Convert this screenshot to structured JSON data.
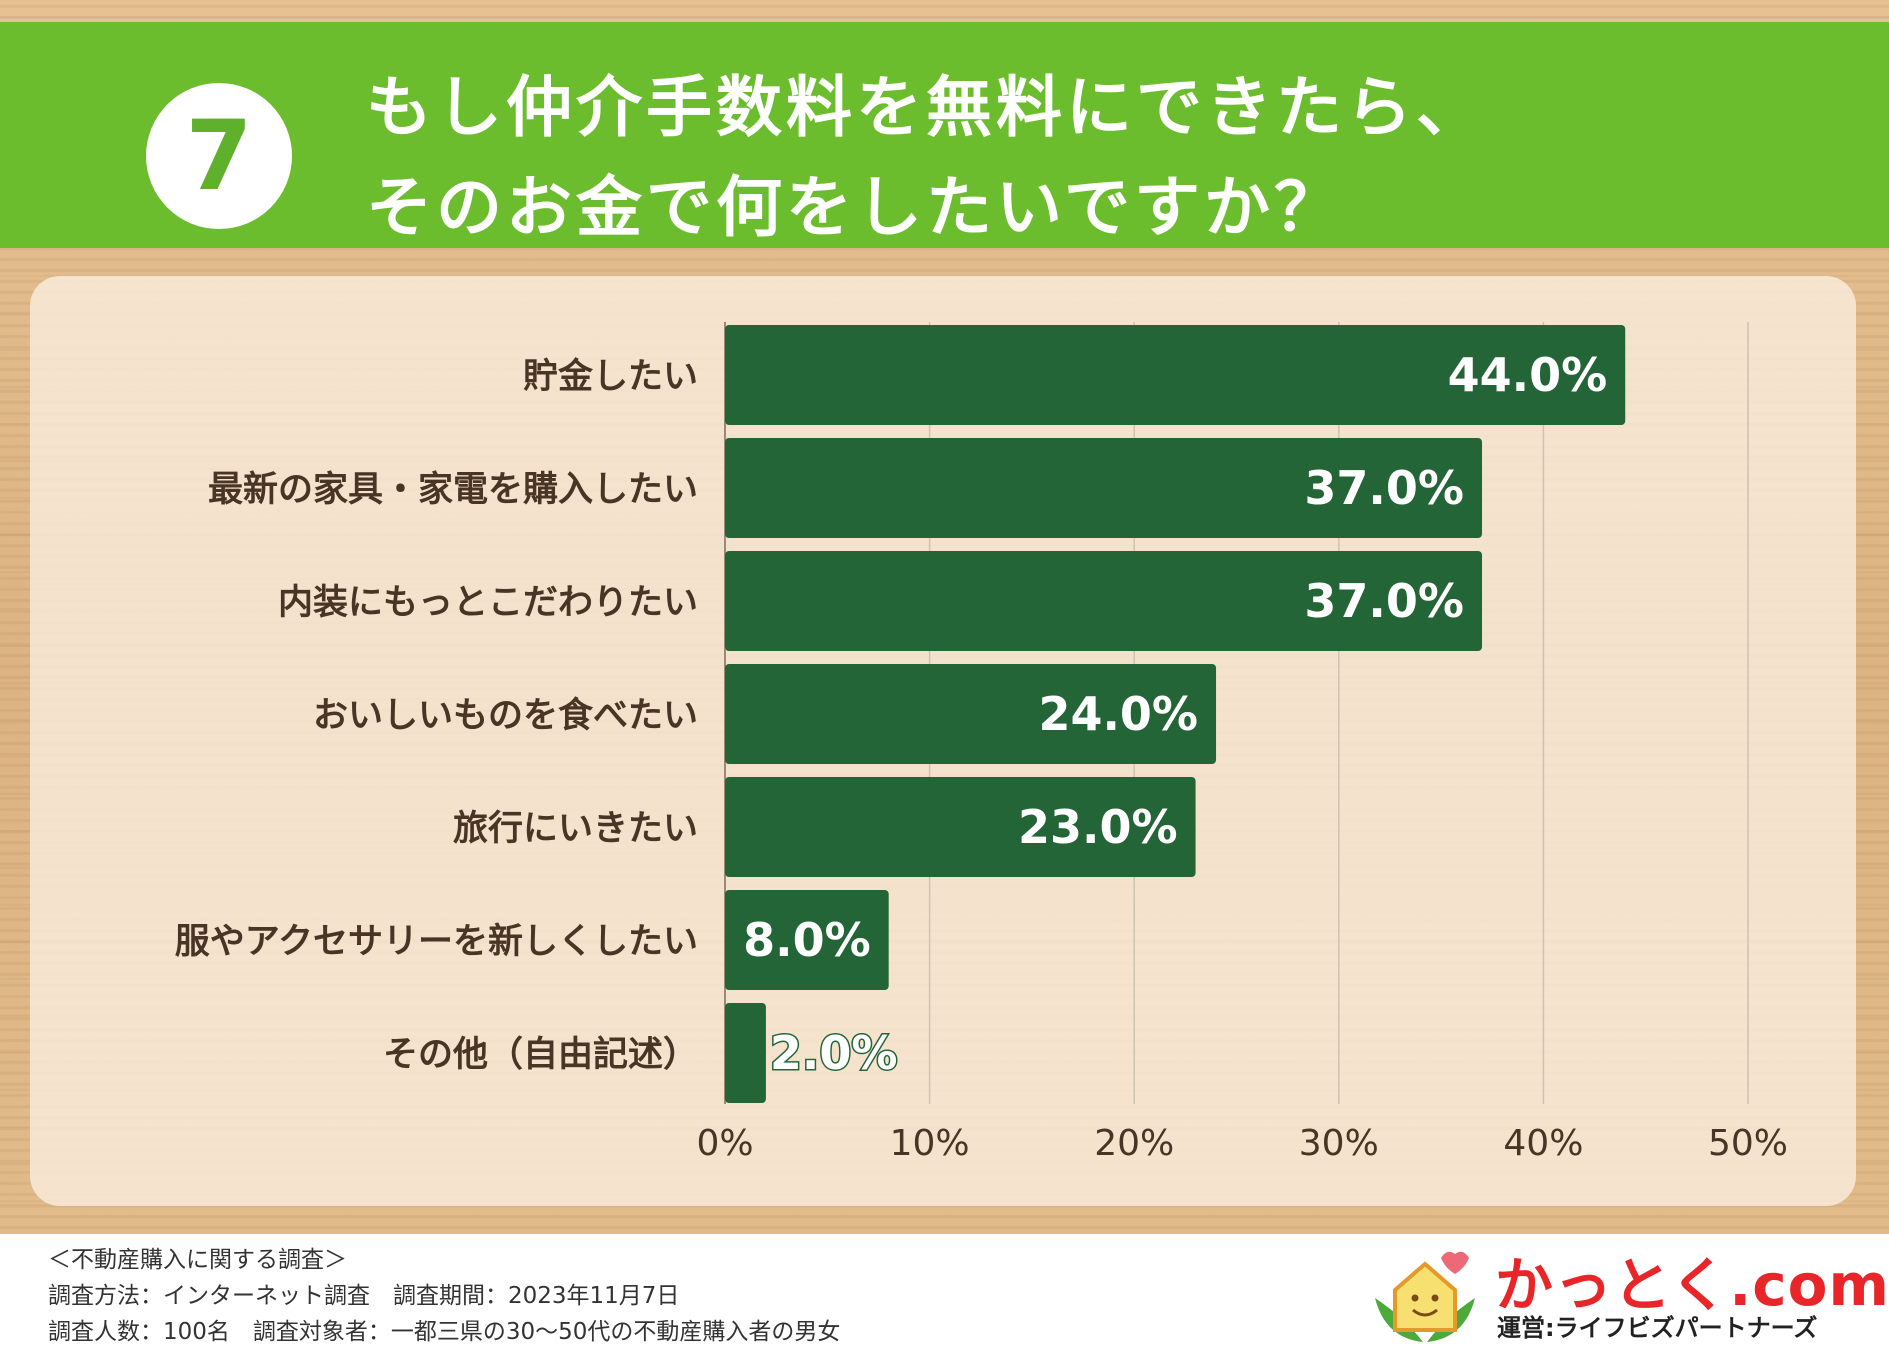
{
  "header": {
    "number": "7",
    "title_line1": "もし仲介手数料を無料にできたら、",
    "title_line2": "そのお金で何をしたいですか？"
  },
  "chart_data": {
    "type": "bar",
    "orientation": "horizontal",
    "categories": [
      "貯金したい",
      "最新の家具・家電を購入したい",
      "内装にもっとこだわりたい",
      "おいしいものを食べたい",
      "旅行にいきたい",
      "服やアクセサリーを新しくしたい",
      "その他（自由記述）"
    ],
    "values": [
      44.0,
      37.0,
      37.0,
      24.0,
      23.0,
      8.0,
      2.0
    ],
    "value_labels": [
      "44.0%",
      "37.0%",
      "37.0%",
      "24.0%",
      "23.0%",
      "8.0%",
      "2.0%"
    ],
    "xlim": [
      0,
      50
    ],
    "x_ticks": [
      "0%",
      "10%",
      "20%",
      "30%",
      "40%",
      "50%"
    ],
    "grid": true,
    "bar_color": "#246537"
  },
  "footer": {
    "note1": "＜不動産購入に関する調査＞",
    "note2": "調査方法：インターネット調査　調査期間：2023年11月7日",
    "note3": "調査人数：100名　調査対象者：一都三県の30〜50代の不動産購入者の男女"
  },
  "logo": {
    "name": "かっとく.com",
    "operator": "運営:ライフビズパートナーズ",
    "icon": "house-leaf-logo-icon"
  },
  "colors": {
    "header_green": "#6cbd2e",
    "brand_red": "#e8262a",
    "text_brown": "#4a3426"
  }
}
